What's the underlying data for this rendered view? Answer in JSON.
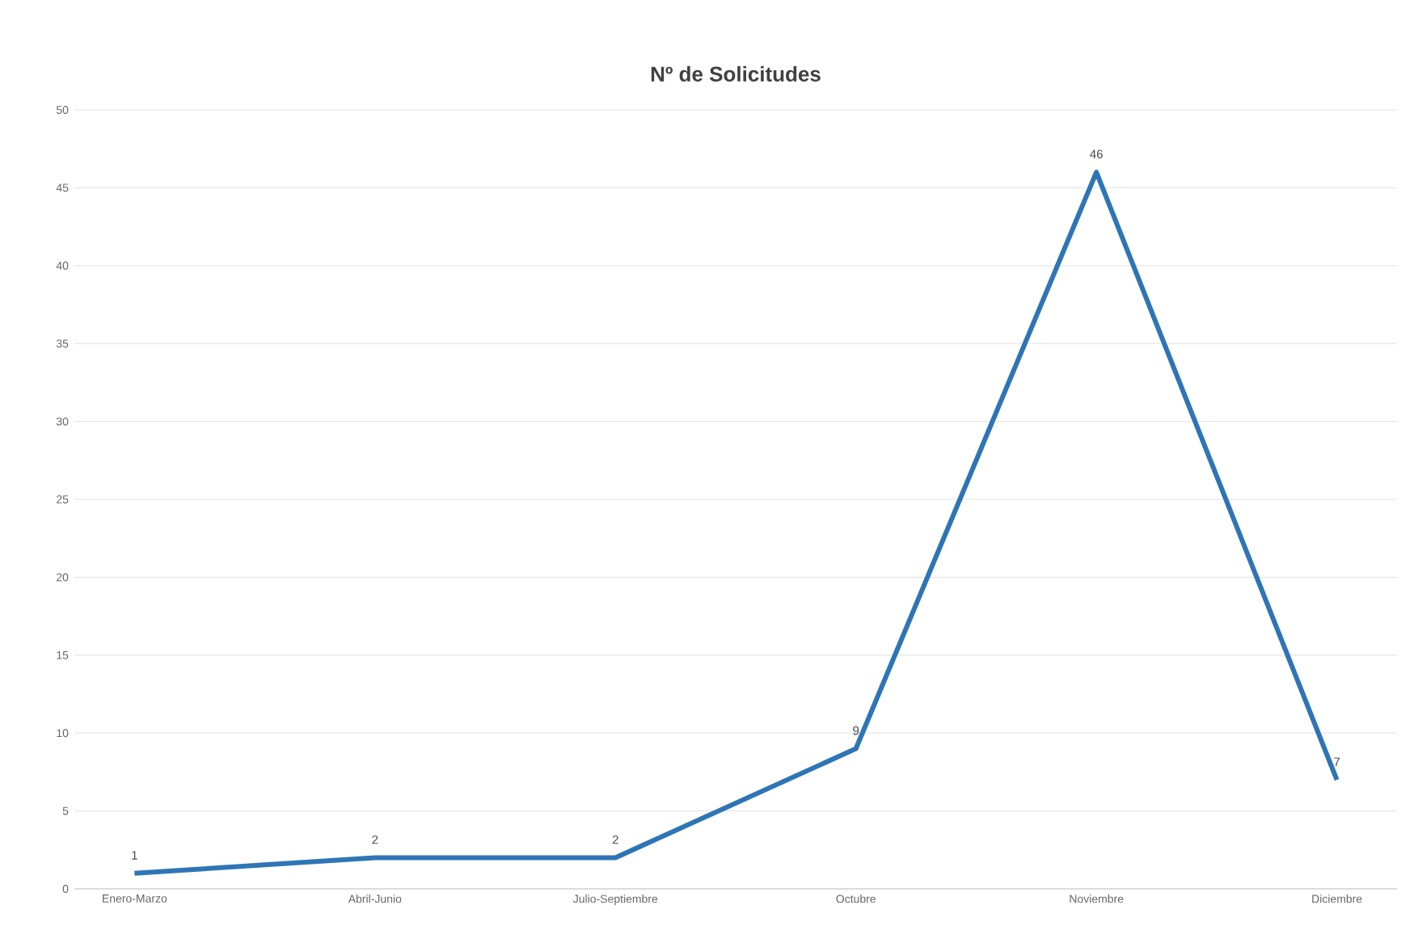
{
  "chart_data": {
    "type": "line",
    "title": "Nº de Solicitudes",
    "categories": [
      "Enero-Marzo",
      "Abril-Junio",
      "Julio-Septiembre",
      "Octubre",
      "Noviembre",
      "Diciembre"
    ],
    "series": [
      {
        "color": "#2e75b6",
        "values": [
          1,
          2,
          2,
          9,
          46,
          7
        ]
      }
    ],
    "ylim": [
      0,
      50
    ],
    "yticks": [
      0,
      5,
      10,
      15,
      20,
      25,
      30,
      35,
      40,
      45,
      50
    ],
    "grid": "y",
    "data_labels": true
  }
}
